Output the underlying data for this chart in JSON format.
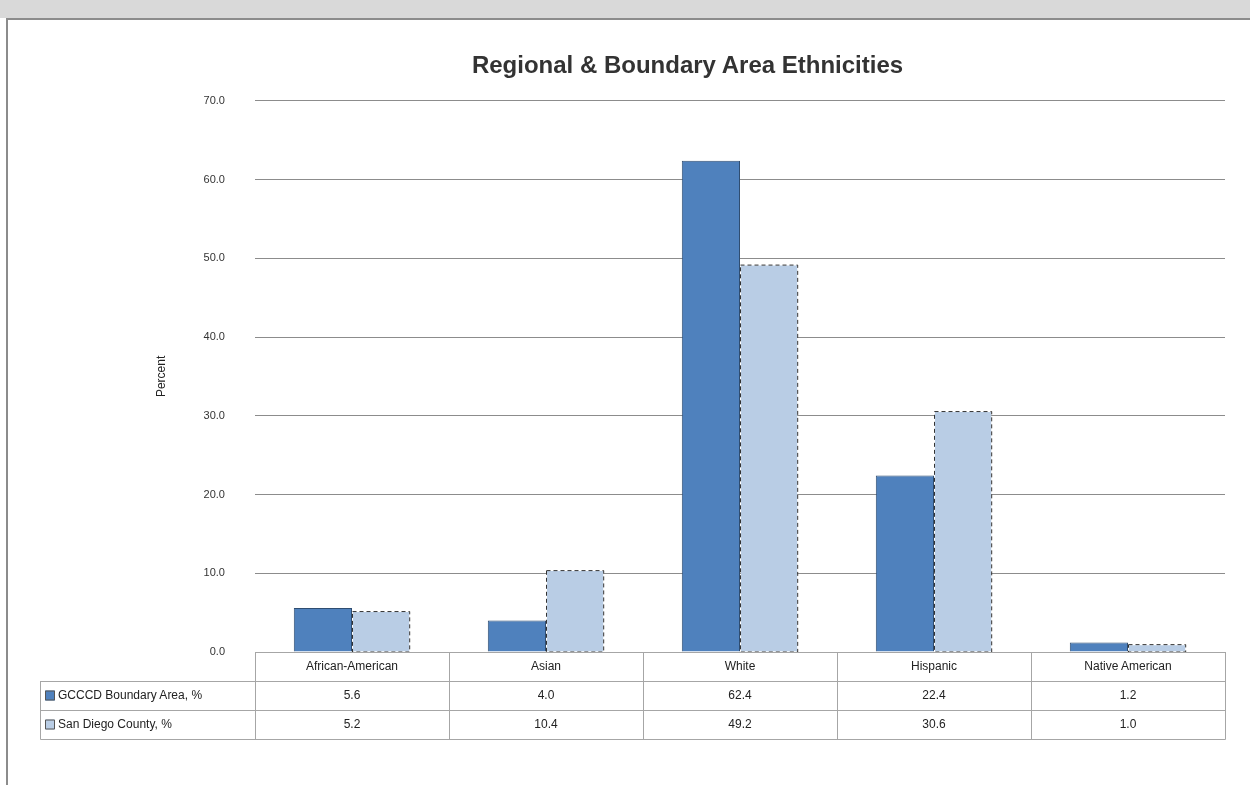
{
  "chart_data": {
    "type": "bar",
    "title": "Regional & Boundary Area Ethnicities",
    "ylabel": "Percent",
    "categories": [
      "African-American",
      "Asian",
      "White",
      "Hispanic",
      "Native American"
    ],
    "series": [
      {
        "name": "GCCCD Boundary Area, %",
        "color": "#4f81bd",
        "values": [
          5.6,
          4.0,
          62.4,
          22.4,
          1.2
        ],
        "value_labels": [
          "5.6",
          "4.0",
          "62.4",
          "22.4",
          "1.2"
        ]
      },
      {
        "name": "San Diego County, %",
        "color": "#b9cde5",
        "line_style": "dashed",
        "values": [
          5.2,
          10.4,
          49.2,
          30.6,
          1.0
        ],
        "value_labels": [
          "5.2",
          "10.4",
          "49.2",
          "30.6",
          "1.0"
        ]
      }
    ],
    "ylim": [
      0,
      70
    ],
    "yticks": [
      {
        "value": 0,
        "label": "0.0"
      },
      {
        "value": 10,
        "label": "10.0"
      },
      {
        "value": 20,
        "label": "20.0"
      },
      {
        "value": 30,
        "label": "30.0"
      },
      {
        "value": 40,
        "label": "40.0"
      },
      {
        "value": 50,
        "label": "50.0"
      },
      {
        "value": 60,
        "label": "60.0"
      },
      {
        "value": 70,
        "label": "70.0"
      }
    ],
    "grid": "y",
    "legend": "bottom left"
  }
}
